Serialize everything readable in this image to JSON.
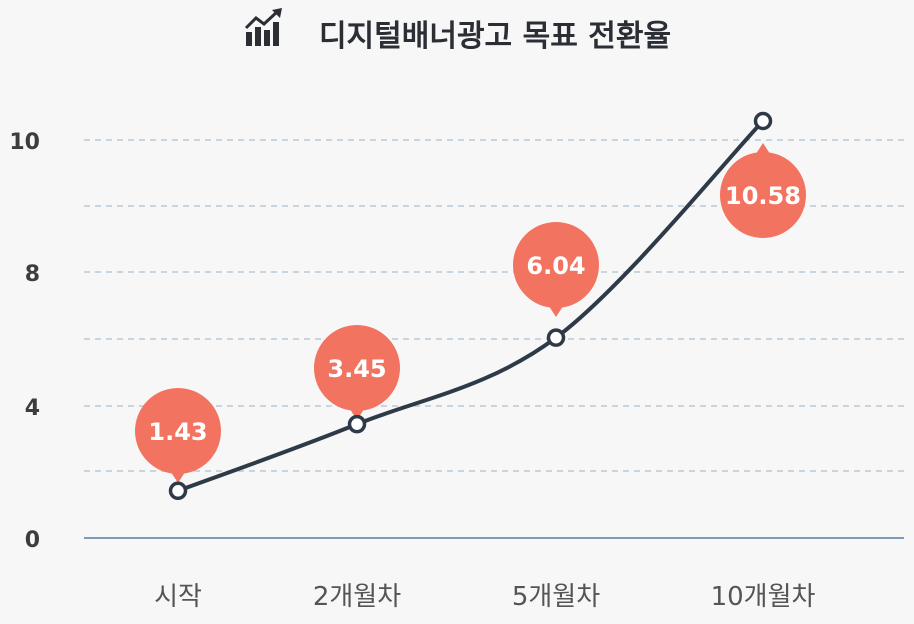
{
  "chart_data": {
    "type": "line",
    "title": "디지털배너광고 목표 전환율",
    "categories": [
      "시작",
      "2개월차",
      "5개월차",
      "10개월차"
    ],
    "series": [
      {
        "values": [
          1.43,
          3.45,
          6.04,
          10.58
        ]
      }
    ],
    "data_labels": [
      "1.43",
      "3.45",
      "6.04",
      "10.58"
    ],
    "y_ticks": [
      "0",
      "4",
      "8",
      "10"
    ],
    "grid": true,
    "colors": {
      "line": "#2f3a48",
      "badge": "#f2735f",
      "grid": "#b9c9d6",
      "axis": "#7f9bb8"
    }
  }
}
